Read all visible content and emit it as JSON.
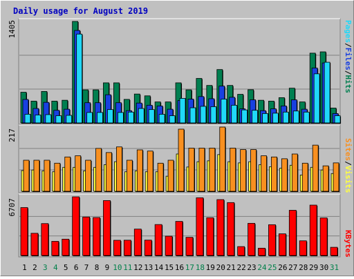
{
  "title": "Daily usage for August 2019",
  "colors": {
    "background": "#c0c0c0",
    "title": "#0000c0",
    "hits": "#007f50",
    "files": "#1840e0",
    "pages": "#20d8f8",
    "visits": "#ffff40",
    "sites": "#f89020",
    "kbytes": "#ff0000",
    "weekend_label": "#00804a",
    "weekday_label": "#000000"
  },
  "chart_data": [
    {
      "type": "bar",
      "panel": "hits-files-pages",
      "categories": [
        "1",
        "2",
        "3",
        "4",
        "5",
        "6",
        "7",
        "8",
        "9",
        "10",
        "11",
        "12",
        "13",
        "14",
        "15",
        "16",
        "17",
        "18",
        "19",
        "20",
        "21",
        "22",
        "23",
        "24",
        "25",
        "26",
        "27",
        "28",
        "29",
        "30",
        "31"
      ],
      "ymax_label": "1405",
      "ylim": [
        0,
        1405
      ],
      "legend": [
        "Pages",
        "/",
        "Files",
        "/",
        "Hits"
      ],
      "series": [
        {
          "name": "Hits",
          "values": [
            425,
            302,
            436,
            302,
            314,
            1405,
            458,
            458,
            555,
            555,
            326,
            400,
            375,
            291,
            291,
            555,
            458,
            616,
            519,
            739,
            519,
            396,
            460,
            314,
            302,
            350,
            481,
            291,
            966,
            984,
            206
          ]
        },
        {
          "name": "Files",
          "values": [
            325,
            200,
            285,
            175,
            190,
            1280,
            280,
            280,
            390,
            280,
            170,
            275,
            245,
            235,
            190,
            310,
            330,
            365,
            335,
            510,
            355,
            195,
            320,
            170,
            195,
            235,
            320,
            190,
            760,
            830,
            130
          ]
        },
        {
          "name": "Pages",
          "values": [
            120,
            110,
            115,
            100,
            105,
            1230,
            145,
            145,
            185,
            145,
            150,
            200,
            185,
            120,
            100,
            340,
            210,
            230,
            225,
            330,
            245,
            180,
            175,
            130,
            135,
            150,
            165,
            150,
            680,
            840,
            100
          ]
        }
      ]
    },
    {
      "type": "bar",
      "panel": "sites-visits",
      "categories": [
        "1",
        "2",
        "3",
        "4",
        "5",
        "6",
        "7",
        "8",
        "9",
        "10",
        "11",
        "12",
        "13",
        "14",
        "15",
        "16",
        "17",
        "18",
        "19",
        "20",
        "21",
        "22",
        "23",
        "24",
        "25",
        "26",
        "27",
        "28",
        "29",
        "30",
        "31"
      ],
      "ymax_label": "217",
      "ylim": [
        0,
        217
      ],
      "legend": [
        "Sites",
        "/",
        "Visits"
      ],
      "series": [
        {
          "name": "Visits",
          "values": [
            70,
            72,
            69,
            66,
            81,
            81,
            69,
            81,
            90,
            100,
            66,
            69,
            66,
            66,
            51,
            126,
            82,
            100,
            103,
            124,
            100,
            96,
            100,
            90,
            83,
            78,
            88,
            55,
            81,
            72,
            60
          ]
        },
        {
          "name": "Sites",
          "values": [
            105,
            105,
            105,
            95,
            116,
            120,
            105,
            145,
            131,
            150,
            105,
            140,
            136,
            95,
            105,
            210,
            146,
            146,
            146,
            217,
            146,
            141,
            141,
            120,
            116,
            110,
            126,
            95,
            156,
            86,
            96
          ]
        }
      ]
    },
    {
      "type": "bar",
      "panel": "kbytes",
      "categories": [
        "1",
        "2",
        "3",
        "4",
        "5",
        "6",
        "7",
        "8",
        "9",
        "10",
        "11",
        "12",
        "13",
        "14",
        "15",
        "16",
        "17",
        "18",
        "19",
        "20",
        "21",
        "22",
        "23",
        "24",
        "25",
        "26",
        "27",
        "28",
        "29",
        "30",
        "31"
      ],
      "ymax_label": "6707",
      "ylim": [
        0,
        6707
      ],
      "legend": [
        "KBytes"
      ],
      "series": [
        {
          "name": "KBytes",
          "values": [
            5480,
            2540,
            3650,
            1620,
            1870,
            6707,
            4400,
            4340,
            6280,
            1740,
            1750,
            3020,
            1760,
            3540,
            2210,
            3900,
            2080,
            6600,
            4320,
            6390,
            6050,
            1020,
            3680,
            840,
            3520,
            2480,
            5170,
            1680,
            5760,
            4300,
            940
          ]
        }
      ]
    }
  ]
}
